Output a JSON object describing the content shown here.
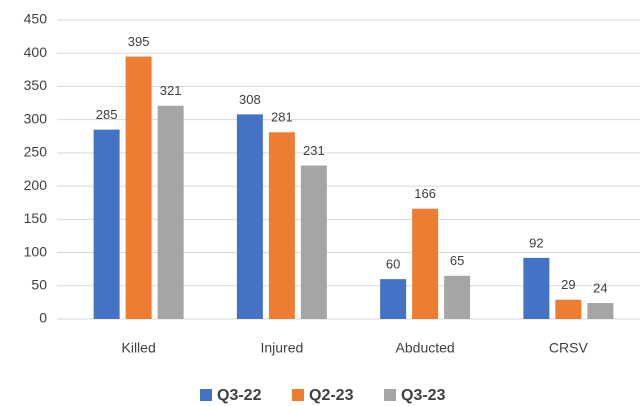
{
  "chart_data": {
    "type": "bar",
    "categories": [
      "Killed",
      "Injured",
      "Abducted",
      "CRSV"
    ],
    "series": [
      {
        "name": "Q3-22",
        "color": "#4472c4",
        "values": [
          285,
          308,
          60,
          92
        ]
      },
      {
        "name": "Q2-23",
        "color": "#ed7d31",
        "values": [
          395,
          281,
          166,
          29
        ]
      },
      {
        "name": "Q3-23",
        "color": "#a5a5a5",
        "values": [
          321,
          231,
          65,
          24
        ]
      }
    ],
    "ylim": [
      0,
      450
    ],
    "yticks": [
      0,
      50,
      100,
      150,
      200,
      250,
      300,
      350,
      400,
      450
    ],
    "grid": true,
    "legend": "bottom"
  }
}
